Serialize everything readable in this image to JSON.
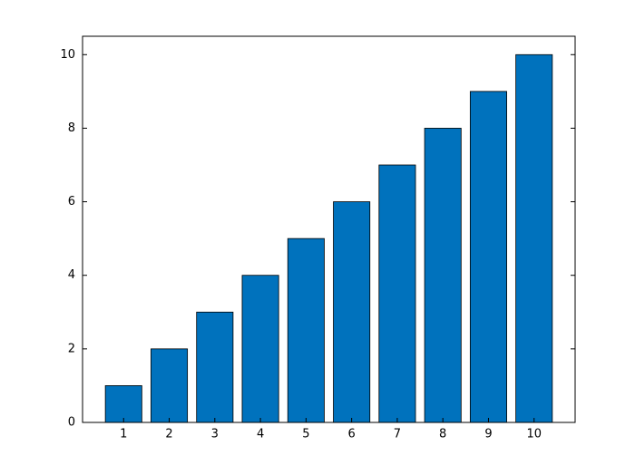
{
  "chart_data": {
    "type": "bar",
    "x": [
      1,
      2,
      3,
      4,
      5,
      6,
      7,
      8,
      9,
      10
    ],
    "values": [
      1,
      2,
      3,
      4,
      5,
      6,
      7,
      8,
      9,
      10
    ],
    "color": "#0072bd",
    "xlim": [
      0.1,
      10.9
    ],
    "xticks": [
      1,
      2,
      3,
      4,
      5,
      6,
      7,
      8,
      9,
      10
    ],
    "ylim": [
      0,
      10.5
    ],
    "yticks": [
      0,
      2,
      4,
      6,
      8,
      10
    ],
    "grid": false
  }
}
